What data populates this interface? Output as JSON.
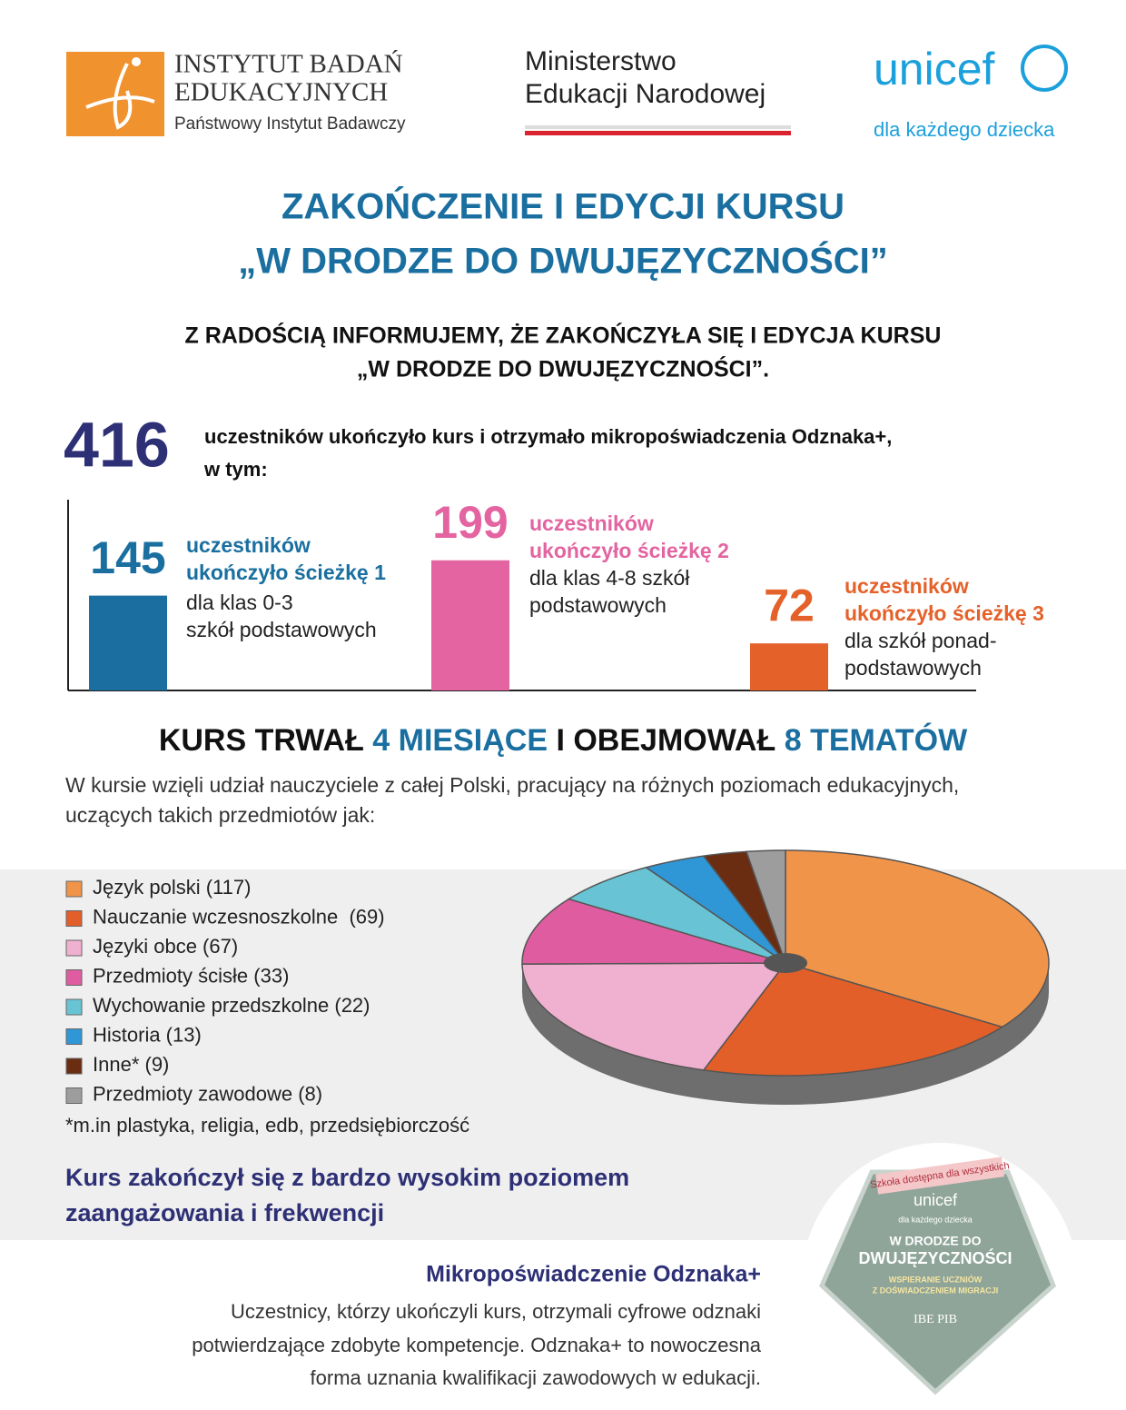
{
  "header": {
    "ibe": [
      "INSTYTUT BADAŃ",
      "EDUKACYJNYCH",
      "Państwowy Instytut Badawczy"
    ],
    "men": [
      "Ministerstwo",
      "Edukacji Narodowej"
    ],
    "unicef": {
      "name": "unicef",
      "tagline": "dla każdego dziecka"
    }
  },
  "title": [
    "ZAKOŃCZENIE I EDYCJI KURSU",
    "„W DRODZE DO DWUJĘZYCZNOŚCI”"
  ],
  "subtitle": [
    "Z RADOŚCIĄ INFORMUJEMY, ŻE ZAKOŃCZYŁA SIĘ I EDYCJA KURSU",
    "„W DRODZE DO DWUJĘZYCZNOŚCI”."
  ],
  "total": {
    "value": 416,
    "text": [
      "uczestników ukończyło kurs i otrzymało mikropoświadczenia Odznaka+,",
      "w tym:"
    ]
  },
  "chart_data": [
    {
      "type": "bar",
      "items": [
        {
          "value": 145,
          "color": "#1a6fa0",
          "label": [
            "uczestników",
            "ukończyło ścieżkę 1"
          ],
          "desc": [
            "dla klas 0-3",
            "szkół podstawowych"
          ]
        },
        {
          "value": 199,
          "color": "#e364a0",
          "label": [
            "uczestników",
            "ukończyło ścieżkę 2"
          ],
          "desc": [
            "dla klas 4-8 szkół",
            "podstawowych"
          ]
        },
        {
          "value": 72,
          "color": "#e5612a",
          "label": [
            "uczestników",
            "ukończyło ścieżkę 3"
          ],
          "desc": [
            "dla szkół ponad-",
            "podstawowych"
          ]
        }
      ]
    },
    {
      "type": "pie",
      "categories": [
        "Język polski (117)",
        "Nauczanie wczesnoszkolne  (69)",
        "Języki obce (67)",
        "Przedmioty ścisłe (33)",
        "Wychowanie przedszkolne (22)",
        "Historia (13)",
        "Inne* (9)",
        "Przedmioty zawodowe (8)"
      ],
      "values": [
        117,
        69,
        67,
        33,
        22,
        13,
        9,
        8
      ],
      "colors": [
        "#f0944a",
        "#e35f29",
        "#f0b0cf",
        "#e05ca0",
        "#68c4d4",
        "#2f97d6",
        "#6b2d12",
        "#9d9d9d"
      ],
      "note": "*m.in plastyka, religia, edb, przedsiębiorczość"
    }
  ],
  "course": {
    "heading": [
      "KURS TRWAŁ",
      "4 MIESIĄCE",
      "I OBEJMOWAŁ",
      "8 TEMATÓW"
    ],
    "intro": [
      "W kursie wzięli udział nauczyciele z całej Polski, pracujący na różnych poziomach edukacyjnych,",
      "uczących takich przedmiotów jak:"
    ]
  },
  "engagement": [
    "Kurs zakończył się z bardzo wysokim poziomem",
    "zaangażowania i frekwencji"
  ],
  "badge_section": {
    "heading": "Mikropoświadczenie Odznaka+",
    "text": [
      "Uczestnicy, którzy ukończyli kurs, otrzymali cyfrowe odznaki",
      "potwierdzające zdobyte kompetencje. Odznaka+ to nowoczesna",
      "forma uznania kwalifikacji zawodowych w edukacji."
    ]
  },
  "badge": {
    "ribbon": "Szkoła dostępna dla wszystkich",
    "brand": "unicef",
    "tagline": "dla każdego dziecka",
    "title": [
      "W DRODZE DO",
      "DWUJĘZYCZNOŚCI"
    ],
    "subtitle": [
      "WSPIERANIE UCZNIÓW",
      "Z DOŚWIADCZENIEM MIGRACJI"
    ],
    "org": "IBE PIB"
  }
}
